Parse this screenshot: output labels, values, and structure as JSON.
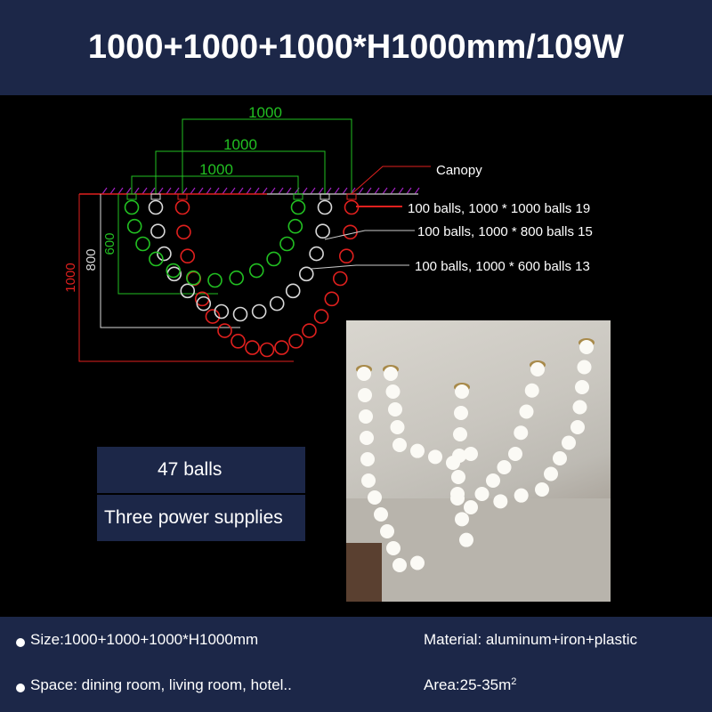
{
  "header": {
    "title": "1000+1000+1000*H1000mm/109W"
  },
  "diagram": {
    "canopy_label": "Canopy",
    "widths": [
      "1000",
      "1000",
      "1000"
    ],
    "heights": {
      "red": "1000",
      "white": "800",
      "green": "600"
    },
    "chains": [
      {
        "label": "100 balls, 1000 * 1000 balls 19",
        "color": "#e0201e",
        "balls": 19
      },
      {
        "label": "100 balls, 1000 * 800 balls 15",
        "color": "#d8d8d8",
        "balls": 15
      },
      {
        "label": "100 balls, 1000 * 600 balls 13",
        "color": "#22c022",
        "balls": 13
      }
    ],
    "canopy_hatch_color": "#a020c0"
  },
  "info_boxes": {
    "balls": "47 balls",
    "power": "Three power supplies"
  },
  "specs": {
    "size": "Size:1000+1000+1000*H1000mm",
    "space": "Space: dining room, living room, hotel..",
    "material": "Material: aluminum+iron+plastic",
    "area": "Area:25-35m",
    "area_sup": "2"
  }
}
